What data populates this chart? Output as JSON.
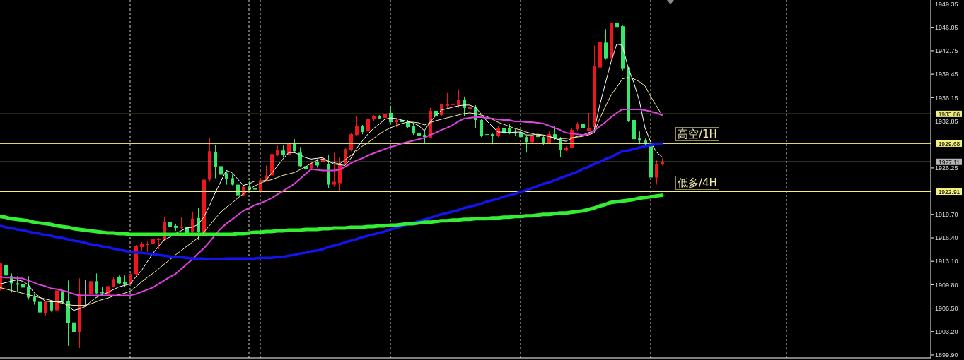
{
  "chart_data": {
    "type": "candlestick",
    "categories": [
      null,
      null,
      null,
      null,
      null,
      null,
      null,
      null,
      null,
      null,
      null,
      null,
      null,
      null,
      null,
      null,
      null,
      null,
      null,
      null,
      null,
      null,
      null,
      null,
      null,
      null,
      null,
      null,
      null,
      null,
      null,
      null,
      null,
      null,
      null,
      null,
      null,
      null,
      null,
      null,
      null,
      null,
      null,
      null,
      null,
      null,
      null,
      null,
      null,
      null,
      null,
      null,
      null,
      null,
      null,
      null,
      null,
      null,
      null,
      null,
      null,
      null,
      null,
      null,
      null,
      null,
      null,
      null,
      null,
      null,
      null,
      null,
      null,
      null,
      null,
      null,
      null,
      null,
      null,
      null,
      null,
      null,
      null,
      null,
      null,
      null,
      null,
      null,
      null,
      null,
      null,
      null,
      null,
      null,
      null,
      null,
      null,
      null,
      null,
      null,
      null,
      null,
      null,
      null,
      null,
      null,
      null,
      null,
      null,
      null,
      null,
      null,
      null,
      null,
      null,
      null,
      null,
      null
    ],
    "ohlc": [
      [
        1909.2,
        1912.9,
        1909.0,
        1912.8
      ],
      [
        1912.6,
        1912.8,
        1911.0,
        1911.1
      ],
      [
        1911.0,
        1911.4,
        1908.7,
        1910.0
      ],
      [
        1910.0,
        1911.0,
        1908.8,
        1909.8
      ],
      [
        1909.9,
        1910.7,
        1909.2,
        1909.4
      ],
      [
        1909.5,
        1911.0,
        1907.7,
        1908.0
      ],
      [
        1908.1,
        1908.5,
        1907.0,
        1907.4
      ],
      [
        1907.4,
        1907.9,
        1905.1,
        1905.9
      ],
      [
        1905.8,
        1907.5,
        1905.5,
        1907.4
      ],
      [
        1907.4,
        1907.5,
        1906.0,
        1906.2
      ],
      [
        1906.2,
        1909.2,
        1906.1,
        1909.0
      ],
      [
        1908.9,
        1909.0,
        1907.2,
        1907.4
      ],
      [
        1907.5,
        1910.4,
        1901.2,
        1904.4
      ],
      [
        1904.5,
        1906.9,
        1902.0,
        1903.1
      ],
      [
        1903.1,
        1910.7,
        1900.9,
        1908.5
      ],
      [
        1908.3,
        1910.5,
        1906.9,
        1908.2
      ],
      [
        1908.5,
        1912.3,
        1908.2,
        1910.3
      ],
      [
        1910.3,
        1911.4,
        1908.5,
        1908.6
      ],
      [
        1908.8,
        1909.5,
        1908.2,
        1908.6
      ],
      [
        1908.4,
        1909.9,
        1908.2,
        1909.6
      ],
      [
        1909.5,
        1910.9,
        1909.4,
        1910.6
      ],
      [
        1910.9,
        1911.1,
        1909.9,
        1910.0
      ],
      [
        1910.2,
        1911.1,
        1909.5,
        1909.8
      ],
      [
        1909.9,
        1911.4,
        1909.8,
        1911.3
      ],
      [
        1911.3,
        1915.4,
        1910.9,
        1915.3
      ],
      [
        1915.1,
        1915.8,
        1914.6,
        1915.5
      ],
      [
        1915.4,
        1915.9,
        1914.4,
        1915.6
      ],
      [
        1915.5,
        1916.6,
        1915.3,
        1916.2
      ],
      [
        1916.1,
        1916.4,
        1914.8,
        1916.2
      ],
      [
        1916.1,
        1919.4,
        1915.9,
        1918.6
      ],
      [
        1918.6,
        1918.9,
        1915.4,
        1917.9
      ],
      [
        1918.1,
        1918.4,
        1917.4,
        1917.8
      ],
      [
        1917.8,
        1919.3,
        1917.7,
        1918.0
      ],
      [
        1917.9,
        1918.3,
        1916.8,
        1916.9
      ],
      [
        1917.3,
        1920.1,
        1917.1,
        1919.1
      ],
      [
        1919.2,
        1920.6,
        1916.1,
        1917.3
      ],
      [
        1917.1,
        1926.9,
        1917.0,
        1924.6
      ],
      [
        1924.6,
        1930.5,
        1924.3,
        1928.6
      ],
      [
        1928.5,
        1929.5,
        1924.8,
        1926.4
      ],
      [
        1926.5,
        1927.9,
        1924.9,
        1925.3
      ],
      [
        1925.5,
        1925.8,
        1923.9,
        1924.7
      ],
      [
        1924.8,
        1925.3,
        1923.8,
        1923.9
      ],
      [
        1923.9,
        1924.4,
        1922.3,
        1922.4
      ],
      [
        1922.4,
        1923.8,
        1922.3,
        1923.6
      ],
      [
        1923.6,
        1924.4,
        1923.1,
        1923.2
      ],
      [
        1923.4,
        1923.8,
        1922.5,
        1923.2
      ],
      [
        1922.9,
        1924.8,
        1922.8,
        1924.5
      ],
      [
        1924.5,
        1926.6,
        1924.3,
        1925.2
      ],
      [
        1925.2,
        1928.6,
        1925.1,
        1928.2
      ],
      [
        1928.0,
        1929.4,
        1927.9,
        1928.8
      ],
      [
        1928.7,
        1929.4,
        1927.7,
        1928.1
      ],
      [
        1928.1,
        1930.8,
        1928.0,
        1929.8
      ],
      [
        1929.8,
        1930.3,
        1928.4,
        1928.6
      ],
      [
        1928.4,
        1929.2,
        1926.4,
        1926.5
      ],
      [
        1926.5,
        1926.8,
        1925.1,
        1926.1
      ],
      [
        1926.2,
        1927.1,
        1926.0,
        1926.9
      ],
      [
        1927.1,
        1927.5,
        1926.3,
        1926.6
      ],
      [
        1927.1,
        1927.9,
        1926.9,
        1927.6
      ],
      [
        1926.8,
        1928.1,
        1923.4,
        1923.9
      ],
      [
        1923.9,
        1928.4,
        1923.6,
        1924.3
      ],
      [
        1924.1,
        1927.7,
        1922.9,
        1926.8
      ],
      [
        1926.8,
        1929.1,
        1926.7,
        1928.9
      ],
      [
        1928.8,
        1931.2,
        1928.6,
        1931.0
      ],
      [
        1930.9,
        1933.5,
        1930.8,
        1932.1
      ],
      [
        1932.1,
        1932.3,
        1931.0,
        1931.3
      ],
      [
        1931.4,
        1933.3,
        1931.3,
        1933.2
      ],
      [
        1933.1,
        1933.7,
        1932.8,
        1933.5
      ],
      [
        1933.6,
        1933.7,
        1933.1,
        1933.2
      ],
      [
        1933.3,
        1934.3,
        1933.2,
        1933.9
      ],
      [
        1934.0,
        1935.0,
        1932.5,
        1932.7
      ],
      [
        1932.7,
        1933.3,
        1932.0,
        1933.0
      ],
      [
        1933.0,
        1933.3,
        1932.3,
        1932.7
      ],
      [
        1932.7,
        1933.0,
        1931.9,
        1932.0
      ],
      [
        1932.1,
        1932.5,
        1930.9,
        1931.1
      ],
      [
        1931.2,
        1931.5,
        1930.4,
        1930.8
      ],
      [
        1930.9,
        1931.4,
        1929.7,
        1930.6
      ],
      [
        1930.5,
        1934.7,
        1930.4,
        1934.3
      ],
      [
        1934.3,
        1934.8,
        1933.4,
        1933.6
      ],
      [
        1933.7,
        1935.3,
        1933.6,
        1935.2
      ],
      [
        1935.0,
        1936.8,
        1934.5,
        1935.2
      ],
      [
        1935.1,
        1936.2,
        1934.5,
        1935.3
      ],
      [
        1935.1,
        1937.3,
        1934.7,
        1935.8
      ],
      [
        1935.8,
        1936.3,
        1933.5,
        1934.7
      ],
      [
        1934.5,
        1935.1,
        1930.9,
        1934.8
      ],
      [
        1934.8,
        1935.1,
        1931.8,
        1933.0
      ],
      [
        1933.0,
        1933.2,
        1930.6,
        1930.8
      ],
      [
        1931.0,
        1933.0,
        1930.5,
        1930.9
      ],
      [
        1931.0,
        1931.1,
        1929.6,
        1930.8
      ],
      [
        1930.8,
        1932.2,
        1930.6,
        1931.9
      ],
      [
        1931.9,
        1932.3,
        1930.9,
        1931.1
      ],
      [
        1931.9,
        1932.5,
        1931.0,
        1931.1
      ],
      [
        1931.3,
        1931.7,
        1930.8,
        1931.1
      ],
      [
        1931.3,
        1931.5,
        1930.2,
        1930.6
      ],
      [
        1930.6,
        1930.8,
        1928.4,
        1929.9
      ],
      [
        1929.9,
        1930.9,
        1929.8,
        1930.8
      ],
      [
        1930.9,
        1931.4,
        1930.1,
        1930.6
      ],
      [
        1930.6,
        1930.8,
        1929.5,
        1929.7
      ],
      [
        1929.7,
        1931.4,
        1929.6,
        1931.0
      ],
      [
        1931.0,
        1932.2,
        1930.2,
        1930.4
      ],
      [
        1930.4,
        1930.6,
        1927.8,
        1928.8
      ],
      [
        1928.7,
        1929.3,
        1928.6,
        1929.1
      ],
      [
        1929.1,
        1931.8,
        1929.0,
        1931.6
      ],
      [
        1931.7,
        1932.7,
        1931.5,
        1932.5
      ],
      [
        1932.5,
        1932.7,
        1931.0,
        1931.9
      ],
      [
        1931.5,
        1934.0,
        1931.4,
        1931.8
      ],
      [
        1932.0,
        1943.5,
        1931.8,
        1940.6
      ],
      [
        1940.4,
        1944.2,
        1940.3,
        1944.0
      ],
      [
        1943.9,
        1945.8,
        1941.5,
        1941.7
      ],
      [
        1941.7,
        1946.7,
        1941.5,
        1946.7
      ],
      [
        1946.7,
        1947.4,
        1945.8,
        1946.1
      ],
      [
        1946.2,
        1946.3,
        1940.0,
        1940.2
      ],
      [
        1940.4,
        1940.5,
        1932.7,
        1932.8
      ],
      [
        1933.0,
        1933.5,
        1929.4,
        1930.3
      ],
      [
        1930.4,
        1931.4,
        1929.6,
        1930.1
      ],
      [
        1930.1,
        1930.4,
        1929.4,
        1929.6
      ],
      [
        1929.3,
        1929.4,
        1924.4,
        1924.9
      ],
      [
        1924.9,
        1927.3,
        1923.9,
        1926.8
      ],
      [
        1926.8,
        1927.6,
        1926.6,
        1927.11
      ]
    ],
    "colors": [
      "#f0161e",
      "#36e86c",
      "#36e86c",
      "#36e86c",
      "#36e86c",
      "#36e86c",
      "#36e86c",
      "#36e86c",
      "#f0161e",
      "#36e86c",
      "#f0161e",
      "#36e86c",
      "#36e86c",
      "#36e86c",
      "#f0161e",
      "#b4b4b4",
      "#f0161e",
      "#36e86c",
      "#36e86c",
      "#f0161e",
      "#f0161e",
      "#36e86c",
      "#36e86c",
      "#f0161e",
      "#f0161e",
      "#f0161e",
      "#f0161e",
      "#f0161e",
      "#f0161e",
      "#f0161e",
      "#36e86c",
      "#36e86c",
      "#f0161e",
      "#36e86c",
      "#f0161e",
      "#36e86c",
      "#f0161e",
      "#f0161e",
      "#36e86c",
      "#36e86c",
      "#36e86c",
      "#36e86c",
      "#36e86c",
      "#f0161e",
      "#36e86c",
      "#36e86c",
      "#f0161e",
      "#f0161e",
      "#f0161e",
      "#f0161e",
      "#36e86c",
      "#f0161e",
      "#36e86c",
      "#36e86c",
      "#36e86c",
      "#f0161e",
      "#36e86c",
      "#f0161e",
      "#36e86c",
      "#f0161e",
      "#f0161e",
      "#f0161e",
      "#f0161e",
      "#f0161e",
      "#36e86c",
      "#f0161e",
      "#f0161e",
      "#36e86c",
      "#f0161e",
      "#36e86c",
      "#f0161e",
      "#36e86c",
      "#36e86c",
      "#36e86c",
      "#36e86c",
      "#36e86c",
      "#f0161e",
      "#36e86c",
      "#f0161e",
      "#f0161e",
      "#f0161e",
      "#f0161e",
      "#36e86c",
      "#f0161e",
      "#36e86c",
      "#36e86c",
      "#36e86c",
      "#36e86c",
      "#f0161e",
      "#36e86c",
      "#36e86c",
      "#36e86c",
      "#36e86c",
      "#36e86c",
      "#f0161e",
      "#36e86c",
      "#36e86c",
      "#f0161e",
      "#36e86c",
      "#36e86c",
      "#f0161e",
      "#f0161e",
      "#f0161e",
      "#36e86c",
      "#f0161e",
      "#f0161e",
      "#f0161e",
      "#36e86c",
      "#f0161e",
      "#36e86c",
      "#36e86c",
      "#36e86c",
      "#36e86c",
      "#36e86c",
      "#36e86c",
      "#36e86c",
      "#f0161e",
      "#f0161e"
    ],
    "series": [
      {
        "type": "line",
        "color": "#ffffff",
        "values": [
          1909.9,
          1910.1,
          1910.3,
          1910.5,
          1910.3,
          1909.8,
          1908.7,
          1908.1,
          1907.5,
          1907.4,
          1907.4,
          1907.4,
          1906.8,
          1906.2,
          1906.4,
          1906.7,
          1907.4,
          1908.0,
          1908.4,
          1908.7,
          1909.1,
          1909.5,
          1909.7,
          1909.9,
          1910.9,
          1911.8,
          1913.0,
          1914.2,
          1915.2,
          1916.1,
          1916.5,
          1917.0,
          1917.4,
          1917.8,
          1917.9,
          1918.3,
          1919.3,
          1920.9,
          1922.7,
          1924.3,
          1925.9,
          1925.6,
          1924.7,
          1923.8,
          1924.0,
          1924.4,
          1924.4,
          1924.5,
          1925.5,
          1926.5,
          1927.5,
          1928.4,
          1928.4,
          1928.1,
          1927.7,
          1927.5,
          1927.6,
          1927.7,
          1927.2,
          1926.8,
          1926.7,
          1926.6,
          1927.6,
          1929.0,
          1930.0,
          1931.0,
          1931.8,
          1932.4,
          1933.1,
          1933.3,
          1933.2,
          1933.0,
          1932.8,
          1932.6,
          1932.2,
          1931.5,
          1932.7,
          1933.6,
          1934.4,
          1934.6,
          1934.8,
          1935.0,
          1935.1,
          1935.1,
          1934.8,
          1933.9,
          1932.9,
          1932.1,
          1931.3,
          1931.3,
          1931.2,
          1931.3,
          1931.3,
          1930.9,
          1930.9,
          1931.0,
          1930.9,
          1930.7,
          1930.4,
          1930.2,
          1930.0,
          1930.4,
          1930.7,
          1930.9,
          1931.2,
          1931.5,
          1935.1,
          1938.2,
          1941.2,
          1943.7,
          1943.5,
          1940.4,
          1938.3,
          1935.7,
          1931.9,
          1929.9,
          1928.5,
          1927.8
        ]
      },
      {
        "type": "line",
        "color": "#f5eea0",
        "values": [
          1909.4,
          1909.2,
          1909.0,
          1908.8,
          1908.6,
          1908.4,
          1908.2,
          1908.0,
          1907.8,
          1907.6,
          1907.4,
          1907.2,
          1907.0,
          1906.9,
          1906.9,
          1906.9,
          1907.1,
          1907.4,
          1907.7,
          1907.9,
          1908.2,
          1908.4,
          1908.6,
          1908.9,
          1909.5,
          1910.2,
          1910.8,
          1911.4,
          1912.0,
          1912.7,
          1913.3,
          1914.0,
          1914.6,
          1915.2,
          1915.8,
          1916.4,
          1917.2,
          1918.1,
          1919.1,
          1920.0,
          1920.7,
          1921.3,
          1922.0,
          1922.6,
          1923.2,
          1923.7,
          1924.1,
          1924.4,
          1924.6,
          1924.9,
          1925.2,
          1925.4,
          1925.6,
          1926.0,
          1926.4,
          1926.9,
          1927.3,
          1927.5,
          1927.2,
          1927.0,
          1926.8,
          1927.4,
          1928.0,
          1928.6,
          1929.3,
          1929.8,
          1930.4,
          1931.0,
          1931.5,
          1931.9,
          1932.2,
          1932.5,
          1932.7,
          1932.7,
          1932.6,
          1932.3,
          1932.6,
          1932.9,
          1933.1,
          1933.3,
          1933.5,
          1933.7,
          1933.9,
          1934.0,
          1933.9,
          1933.7,
          1933.5,
          1933.1,
          1932.7,
          1932.4,
          1932.1,
          1931.8,
          1931.6,
          1931.3,
          1931.1,
          1930.9,
          1930.8,
          1930.7,
          1930.5,
          1930.4,
          1930.4,
          1930.5,
          1930.6,
          1930.7,
          1930.9,
          1931.2,
          1933.2,
          1934.9,
          1936.5,
          1937.6,
          1938.8,
          1939.0,
          1938.8,
          1938.4,
          1937.8,
          1936.3,
          1935.0,
          1933.7
        ]
      },
      {
        "type": "line",
        "color": "#e040e0",
        "values": [
          1910.9,
          1910.8,
          1910.8,
          1910.7,
          1910.7,
          1910.4,
          1910.1,
          1909.8,
          1909.6,
          1909.3,
          1909.2,
          1909.0,
          1908.8,
          1908.5,
          1908.3,
          1908.3,
          1908.3,
          1908.3,
          1908.3,
          1908.3,
          1908.3,
          1908.3,
          1908.3,
          1908.3,
          1908.5,
          1908.8,
          1909.1,
          1909.4,
          1909.9,
          1910.4,
          1910.9,
          1911.3,
          1912.0,
          1912.7,
          1913.4,
          1914.2,
          1914.9,
          1915.8,
          1916.8,
          1917.7,
          1918.4,
          1919.0,
          1919.6,
          1920.2,
          1920.6,
          1921.0,
          1921.3,
          1921.6,
          1922.0,
          1922.5,
          1923.0,
          1923.5,
          1924.0,
          1924.7,
          1925.4,
          1926.1,
          1926.0,
          1925.9,
          1925.9,
          1925.9,
          1926.0,
          1926.4,
          1926.9,
          1927.3,
          1927.6,
          1928.0,
          1928.3,
          1928.6,
          1928.9,
          1929.2,
          1929.4,
          1929.7,
          1929.9,
          1930.1,
          1930.3,
          1930.5,
          1930.9,
          1931.2,
          1931.6,
          1931.9,
          1932.3,
          1932.8,
          1933.2,
          1933.3,
          1933.4,
          1933.4,
          1933.3,
          1933.2,
          1933.1,
          1933.0,
          1933.0,
          1932.8,
          1932.8,
          1932.7,
          1932.7,
          1932.6,
          1932.5,
          1932.2,
          1931.9,
          1931.6,
          1931.2,
          1931.1,
          1931.0,
          1930.9,
          1931.0,
          1931.5,
          1932.1,
          1932.7,
          1933.4,
          1934.0,
          1934.5,
          1934.5,
          1934.5,
          1934.5,
          1934.4,
          1934.2,
          1934.0,
          1933.7
        ]
      },
      {
        "type": "line",
        "color": "#1414f0",
        "values": [
          1918.1,
          1917.9,
          1917.8,
          1917.6,
          1917.5,
          1917.3,
          1917.1,
          1917.0,
          1916.8,
          1916.7,
          1916.5,
          1916.4,
          1916.2,
          1916.0,
          1915.9,
          1915.7,
          1915.5,
          1915.4,
          1915.2,
          1915.1,
          1914.9,
          1914.7,
          1914.6,
          1914.4,
          1914.3,
          1914.3,
          1914.2,
          1914.1,
          1914.0,
          1913.9,
          1913.8,
          1913.7,
          1913.7,
          1913.6,
          1913.5,
          1913.5,
          1913.5,
          1913.4,
          1913.4,
          1913.4,
          1913.5,
          1913.5,
          1913.5,
          1913.5,
          1913.5,
          1913.5,
          1913.6,
          1913.6,
          1913.6,
          1913.7,
          1913.7,
          1913.9,
          1914.0,
          1914.2,
          1914.3,
          1914.5,
          1914.6,
          1914.8,
          1915.1,
          1915.3,
          1915.5,
          1915.8,
          1916.0,
          1916.2,
          1916.5,
          1916.7,
          1916.9,
          1917.1,
          1917.3,
          1917.6,
          1917.8,
          1918.0,
          1918.3,
          1918.5,
          1918.8,
          1919.0,
          1919.2,
          1919.5,
          1919.7,
          1919.9,
          1920.1,
          1920.3,
          1920.6,
          1920.8,
          1921.0,
          1921.2,
          1921.5,
          1921.7,
          1921.9,
          1922.2,
          1922.4,
          1922.6,
          1922.9,
          1923.1,
          1923.4,
          1923.7,
          1924.0,
          1924.2,
          1924.5,
          1924.8,
          1925.1,
          1925.4,
          1925.7,
          1926.1,
          1926.4,
          1926.8,
          1927.1,
          1927.5,
          1927.8,
          1928.2,
          1928.6,
          1928.7,
          1928.9,
          1929.1,
          1929.3,
          1929.5,
          1929.6,
          1929.7
        ]
      },
      {
        "type": "line",
        "color": "#33ee33",
        "values": [
          1919.4,
          1919.3,
          1919.1,
          1919.0,
          1918.9,
          1918.8,
          1918.6,
          1918.5,
          1918.4,
          1918.3,
          1918.1,
          1918.0,
          1917.9,
          1917.7,
          1917.6,
          1917.5,
          1917.4,
          1917.3,
          1917.2,
          1917.1,
          1917.1,
          1917.0,
          1917.0,
          1916.9,
          1916.9,
          1916.9,
          1916.9,
          1916.9,
          1916.9,
          1916.9,
          1916.9,
          1916.9,
          1916.9,
          1916.9,
          1916.9,
          1916.9,
          1916.9,
          1916.9,
          1916.9,
          1916.9,
          1916.9,
          1916.9,
          1917.0,
          1917.0,
          1917.1,
          1917.2,
          1917.2,
          1917.3,
          1917.3,
          1917.4,
          1917.4,
          1917.5,
          1917.5,
          1917.5,
          1917.6,
          1917.6,
          1917.6,
          1917.7,
          1917.7,
          1917.8,
          1917.8,
          1917.8,
          1917.9,
          1917.9,
          1917.9,
          1918.0,
          1918.0,
          1918.1,
          1918.1,
          1918.2,
          1918.2,
          1918.3,
          1918.4,
          1918.4,
          1918.5,
          1918.6,
          1918.6,
          1918.7,
          1918.8,
          1918.8,
          1918.9,
          1918.9,
          1919.0,
          1919.0,
          1919.1,
          1919.1,
          1919.1,
          1919.2,
          1919.2,
          1919.3,
          1919.3,
          1919.4,
          1919.4,
          1919.5,
          1919.5,
          1919.6,
          1919.7,
          1919.7,
          1919.8,
          1919.9,
          1919.9,
          1920.0,
          1920.1,
          1920.2,
          1920.4,
          1920.6,
          1920.9,
          1921.1,
          1921.4,
          1921.5,
          1921.6,
          1921.7,
          1921.8,
          1922.0,
          1922.1,
          1922.2,
          1922.3,
          1922.4
        ]
      }
    ],
    "ylim": [
      1899.5,
      1949.9
    ],
    "yticks": [
      1949.35,
      1946.05,
      1942.75,
      1939.45,
      1936.15,
      1932.85,
      1926.25,
      {
        "value": 1919.7,
        "label": "1919.70"
      },
      {
        "value": 1916.4,
        "label": "1916.40"
      },
      {
        "value": 1913.1,
        "label": "1913.10"
      },
      {
        "value": 1909.8,
        "label": "1909.80"
      },
      {
        "value": 1906.5,
        "label": "1906.50"
      },
      {
        "value": 1903.2,
        "label": "1903.20"
      },
      {
        "value": 1899.9,
        "label": "1899.90"
      }
    ],
    "ref_lines": [
      {
        "axis": "y",
        "value": 1933.86,
        "label": "1933.86",
        "color": "#f2f07a"
      },
      {
        "axis": "y",
        "value": 1929.68,
        "label": "1929.68",
        "color": "#f2f07a"
      },
      {
        "axis": "y",
        "value": 1927.11,
        "label": "1927.11",
        "color": "#b4b4b4"
      },
      {
        "axis": "y",
        "value": 1922.91,
        "label": "1922.91",
        "color": "#f2f07a"
      }
    ],
    "annotations": [
      "高空/1H",
      "低多/4H"
    ],
    "grid": "x",
    "tick_labels": "y",
    "marker": "none"
  }
}
